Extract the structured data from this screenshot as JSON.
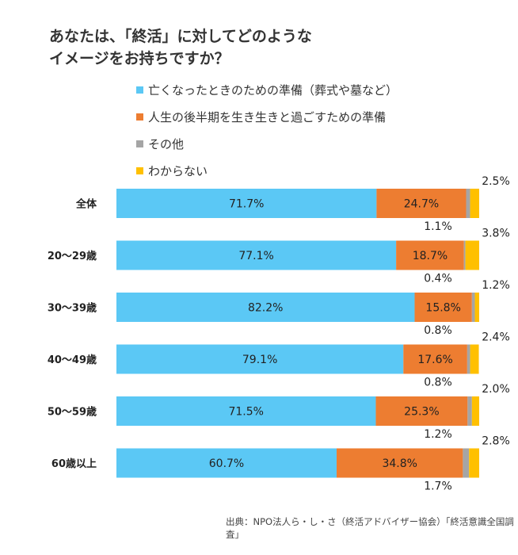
{
  "chart_data": {
    "type": "bar",
    "orientation": "horizontal",
    "stacked": true,
    "title": "あなたは、「終活」に対してどのような\nイメージをお持ちですか？",
    "title_lines": [
      "あなたは、「終活」に対してどのような",
      "イメージをお持ちですか？"
    ],
    "categories": [
      "全体",
      "20～29歳",
      "30～39歳",
      "40～49歳",
      "50～59歳",
      "60歳以上"
    ],
    "series": [
      {
        "name": "亡くなったときのための準備（葬式や墓など）",
        "color": "#5BC8F5",
        "values": [
          71.7,
          77.1,
          82.2,
          79.1,
          71.5,
          60.7
        ]
      },
      {
        "name": "人生の後半期を生き生きと過ごすための準備",
        "color": "#ED7D31",
        "values": [
          24.7,
          18.7,
          15.8,
          17.6,
          25.3,
          34.8
        ]
      },
      {
        "name": "その他",
        "color": "#A5A5A5",
        "values": [
          1.1,
          0.4,
          0.8,
          0.8,
          1.2,
          1.7
        ]
      },
      {
        "name": "わからない",
        "color": "#FFC000",
        "values": [
          2.5,
          3.8,
          1.2,
          2.4,
          2.0,
          2.8
        ]
      }
    ],
    "xlim": [
      0,
      100
    ],
    "grid": false,
    "legend": "top",
    "unit": "%",
    "source": "出典：NPO法人ら・し・さ（終活アドバイザー協会）「終活意識全国調査」"
  }
}
